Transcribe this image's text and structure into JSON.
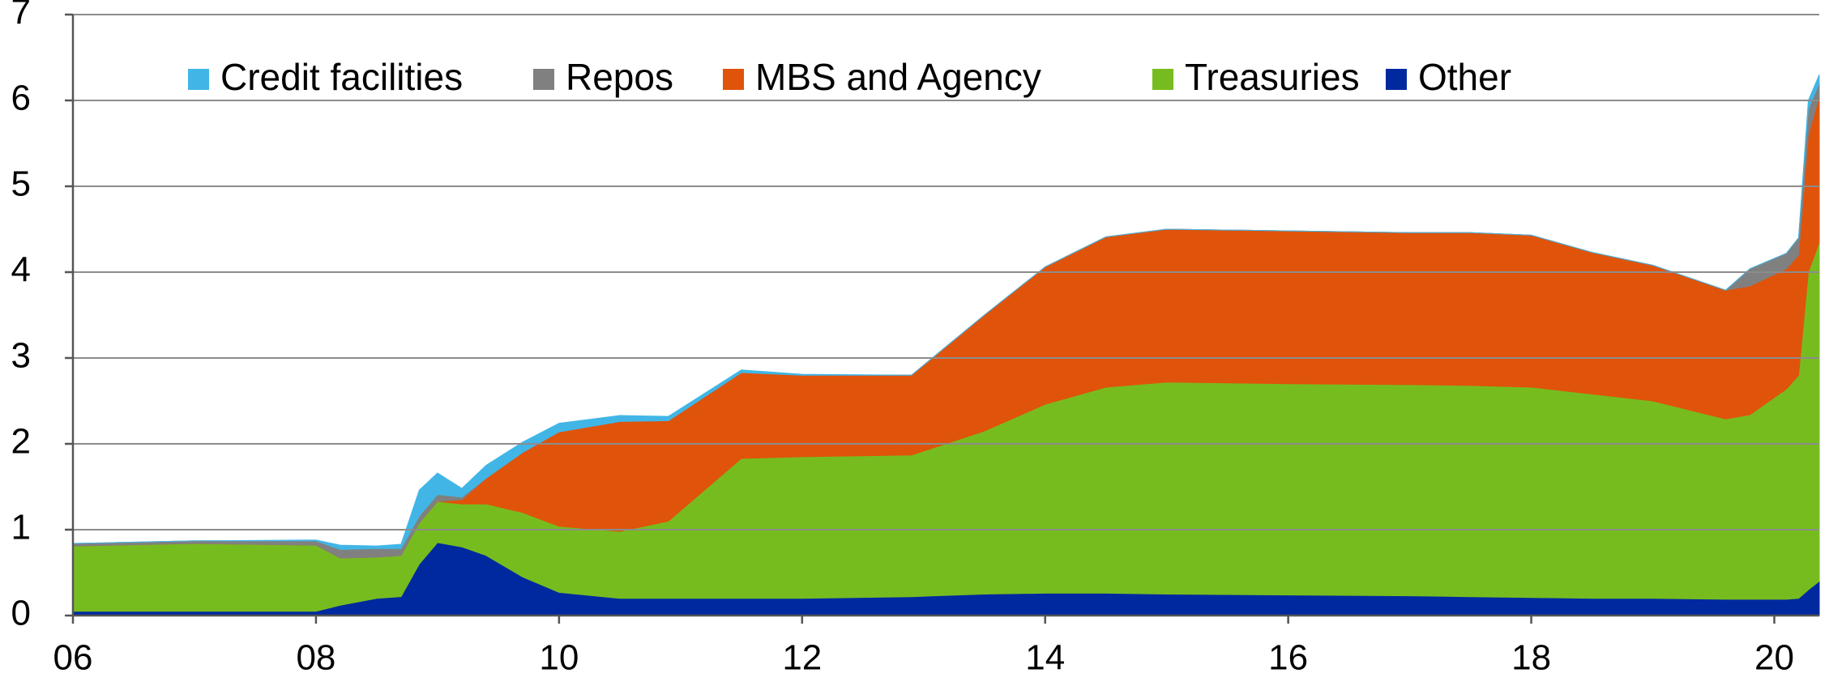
{
  "chart_data": {
    "type": "stacked-area",
    "x": [
      2006.0,
      2007.0,
      2008.0,
      2008.2,
      2008.5,
      2008.7,
      2008.85,
      2009.0,
      2009.2,
      2009.4,
      2009.7,
      2010.0,
      2010.5,
      2010.9,
      2011.5,
      2012.0,
      2012.9,
      2013.5,
      2014.0,
      2014.5,
      2015.0,
      2016.0,
      2017.0,
      2017.5,
      2018.0,
      2018.5,
      2019.0,
      2019.6,
      2019.8,
      2020.1,
      2020.2,
      2020.28,
      2020.37
    ],
    "series": [
      {
        "name": "Other",
        "color": "#0029a0",
        "values": [
          0.05,
          0.05,
          0.05,
          0.12,
          0.2,
          0.22,
          0.6,
          0.85,
          0.8,
          0.7,
          0.45,
          0.27,
          0.2,
          0.2,
          0.2,
          0.2,
          0.22,
          0.25,
          0.26,
          0.26,
          0.25,
          0.24,
          0.23,
          0.22,
          0.21,
          0.2,
          0.2,
          0.19,
          0.19,
          0.19,
          0.2,
          0.3,
          0.4
        ]
      },
      {
        "name": "Treasuries",
        "color": "#77bc1f",
        "values": [
          0.76,
          0.79,
          0.77,
          0.55,
          0.48,
          0.48,
          0.48,
          0.48,
          0.5,
          0.6,
          0.75,
          0.77,
          0.78,
          0.9,
          1.63,
          1.65,
          1.65,
          1.9,
          2.2,
          2.4,
          2.47,
          2.46,
          2.46,
          2.46,
          2.45,
          2.38,
          2.3,
          2.1,
          2.15,
          2.45,
          2.6,
          3.7,
          3.95
        ]
      },
      {
        "name": "MBS and Agency",
        "color": "#e0530b",
        "values": [
          0,
          0,
          0,
          0,
          0,
          0,
          0,
          0,
          0.05,
          0.3,
          0.7,
          1.1,
          1.28,
          1.17,
          1.0,
          0.95,
          0.93,
          1.35,
          1.6,
          1.75,
          1.78,
          1.78,
          1.77,
          1.78,
          1.77,
          1.65,
          1.58,
          1.5,
          1.5,
          1.4,
          1.4,
          1.6,
          1.7
        ]
      },
      {
        "name": "Repos",
        "color": "#808080",
        "values": [
          0.03,
          0.03,
          0.05,
          0.1,
          0.1,
          0.08,
          0.08,
          0.08,
          0.03,
          0,
          0,
          0,
          0,
          0,
          0,
          0,
          0,
          0,
          0,
          0,
          0,
          0,
          0,
          0,
          0,
          0,
          0,
          0,
          0.2,
          0.18,
          0.2,
          0.3,
          0.15
        ]
      },
      {
        "name": "Credit facilities",
        "color": "#41b6e6",
        "values": [
          0,
          0,
          0.01,
          0.05,
          0.03,
          0.05,
          0.3,
          0.25,
          0.1,
          0.15,
          0.12,
          0.1,
          0.07,
          0.05,
          0.03,
          0.01,
          0,
          0,
          0,
          0,
          0,
          0,
          0,
          0,
          0,
          0,
          0,
          0,
          0,
          0,
          0,
          0.1,
          0.1
        ]
      }
    ],
    "xlim": [
      2006,
      2020.37
    ],
    "xticks": [
      {
        "value": 2006,
        "label": "06"
      },
      {
        "value": 2008,
        "label": "08"
      },
      {
        "value": 2010,
        "label": "10"
      },
      {
        "value": 2012,
        "label": "12"
      },
      {
        "value": 2014,
        "label": "14"
      },
      {
        "value": 2016,
        "label": "16"
      },
      {
        "value": 2018,
        "label": "18"
      },
      {
        "value": 2020,
        "label": "20"
      }
    ],
    "ylim": [
      0,
      7
    ],
    "yticks": [
      0,
      1,
      2,
      3,
      4,
      5,
      6,
      7
    ],
    "grid": true
  }
}
